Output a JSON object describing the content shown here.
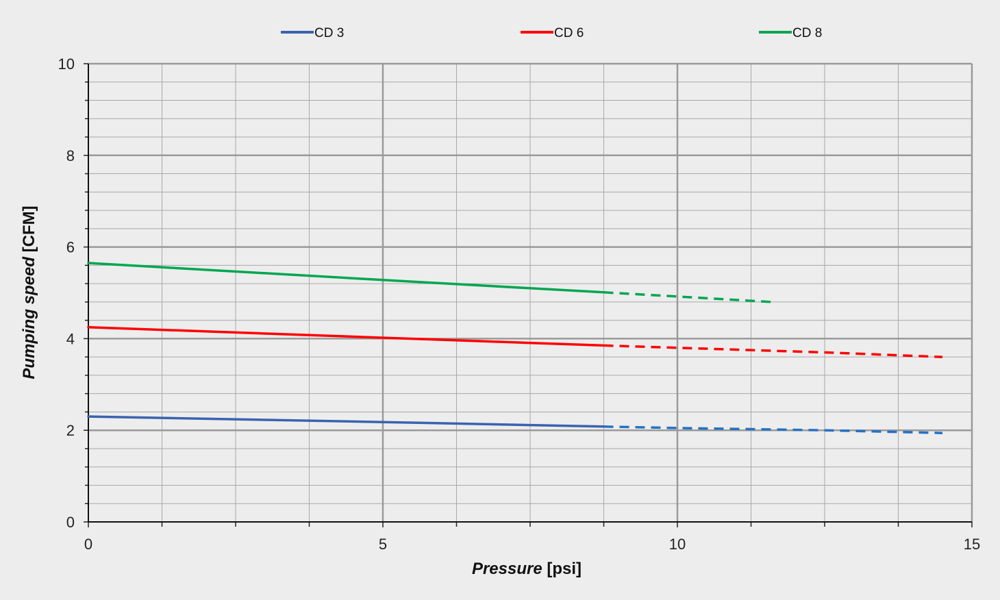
{
  "chart_data": {
    "type": "line",
    "xlabel": "Pressure",
    "xlabel_unit": "[psi]",
    "ylabel": "Pumping speed",
    "ylabel_unit": "[CFM]",
    "xlim": [
      0,
      15
    ],
    "ylim": [
      0,
      10
    ],
    "xticks": [
      0,
      5,
      10,
      15
    ],
    "yticks": [
      0,
      2,
      4,
      6,
      8,
      10
    ],
    "x_minor_step": 1.25,
    "y_minor_step": 0.4,
    "grid": true,
    "legend_position": "top-center",
    "series": [
      {
        "name": "CD 3",
        "color": "#3a62b0",
        "dash_color": "#2671c4",
        "solid": [
          [
            0,
            2.3
          ],
          [
            5,
            2.18
          ],
          [
            8.75,
            2.08
          ]
        ],
        "dashed": [
          [
            8.75,
            2.08
          ],
          [
            10,
            2.05
          ],
          [
            12.5,
            2.0
          ],
          [
            14.5,
            1.94
          ]
        ]
      },
      {
        "name": "CD 6",
        "color": "#ff0000",
        "dash_color": "#ff0000",
        "solid": [
          [
            0,
            4.25
          ],
          [
            5,
            4.02
          ],
          [
            8.75,
            3.85
          ]
        ],
        "dashed": [
          [
            8.75,
            3.85
          ],
          [
            10,
            3.8
          ],
          [
            12.5,
            3.7
          ],
          [
            14.5,
            3.6
          ]
        ]
      },
      {
        "name": "CD 8",
        "color": "#00a651",
        "dash_color": "#00a651",
        "solid": [
          [
            0,
            5.65
          ],
          [
            5,
            5.28
          ],
          [
            8.75,
            5.01
          ]
        ],
        "dashed": [
          [
            8.75,
            5.01
          ],
          [
            10,
            4.92
          ],
          [
            11.6,
            4.8
          ]
        ]
      }
    ]
  }
}
